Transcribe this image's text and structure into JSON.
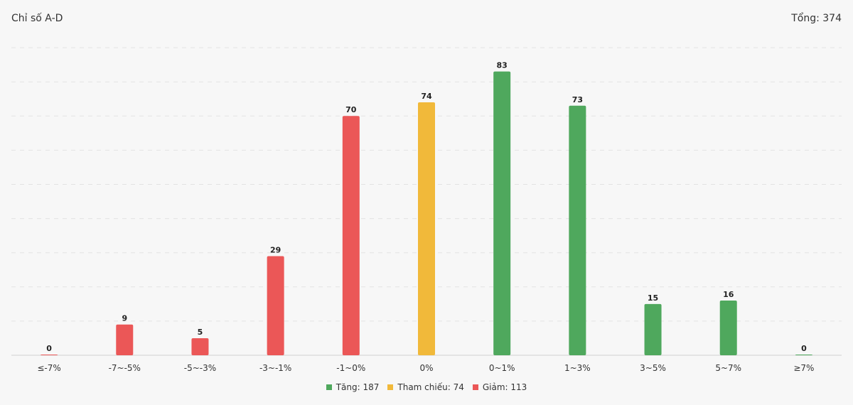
{
  "header": {
    "title": "Chỉ số A-D",
    "total": "Tổng: 374"
  },
  "legend": [
    {
      "label": "Tăng: 187",
      "color": "#4fa85d"
    },
    {
      "label": "Tham chiếu: 74",
      "color": "#f1b93a"
    },
    {
      "label": "Giảm: 113",
      "color": "#eb5757"
    }
  ],
  "chart_data": {
    "type": "bar",
    "categories": [
      "≤-7%",
      "-7~-5%",
      "-5~-3%",
      "-3~-1%",
      "-1~0%",
      "0%",
      "0~1%",
      "1~3%",
      "3~5%",
      "5~7%",
      "≥7%"
    ],
    "values": [
      0,
      9,
      5,
      29,
      70,
      74,
      83,
      73,
      15,
      16,
      0
    ],
    "bar_colors": [
      "#eb5757",
      "#eb5757",
      "#eb5757",
      "#eb5757",
      "#eb5757",
      "#f1b93a",
      "#4fa85d",
      "#4fa85d",
      "#4fa85d",
      "#4fa85d",
      "#4fa85d"
    ],
    "ylim": [
      0,
      90
    ],
    "grid": true,
    "legend_position": "bottom"
  }
}
